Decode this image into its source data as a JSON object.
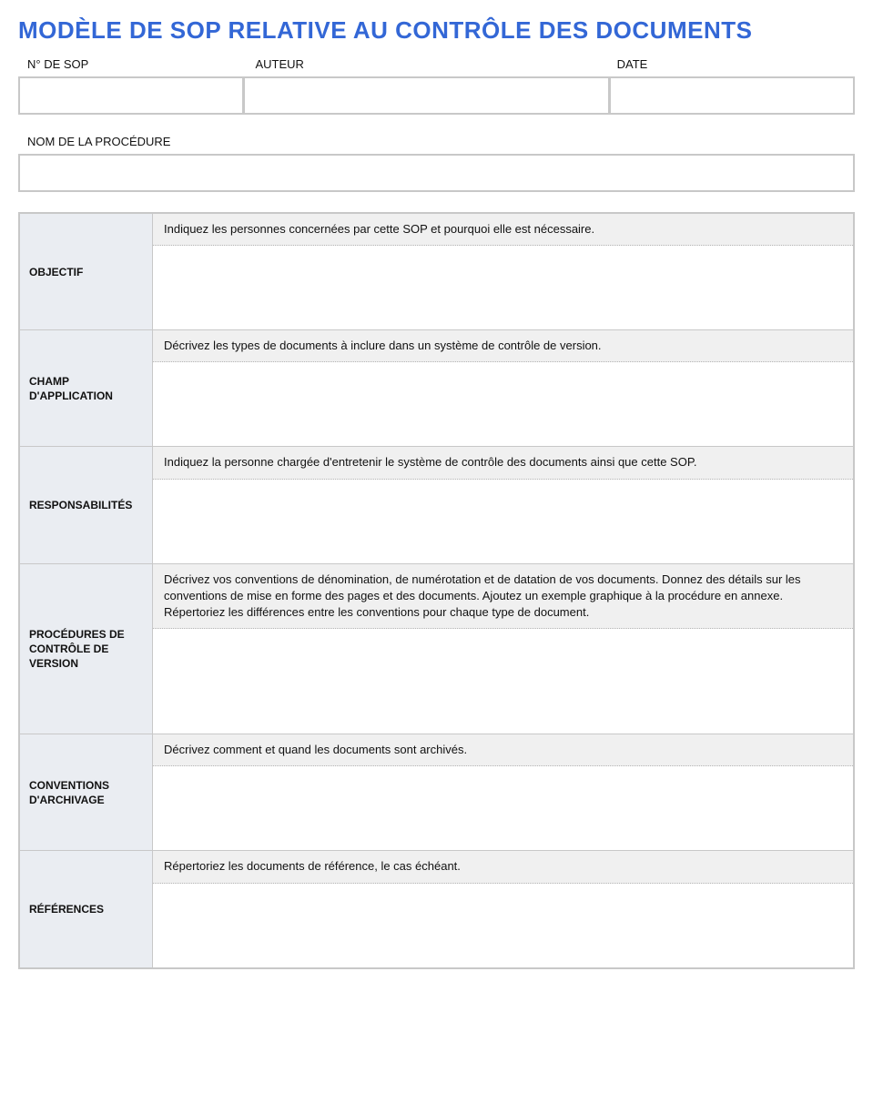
{
  "title": "MODÈLE DE SOP RELATIVE AU CONTRÔLE DES DOCUMENTS",
  "header": {
    "sop_no_label": "N° DE SOP",
    "auteur_label": "AUTEUR",
    "date_label": "DATE",
    "sop_no_value": "",
    "auteur_value": "",
    "date_value": ""
  },
  "procedure_name": {
    "label": "NOM DE LA PROCÉDURE",
    "value": ""
  },
  "sections": {
    "objectif": {
      "label": "OBJECTIF",
      "description": "Indiquez les personnes concernées par cette SOP et pourquoi elle est nécessaire."
    },
    "champ": {
      "label": "CHAMP D'APPLICATION",
      "description": "Décrivez les types de documents à inclure dans un système de contrôle de version."
    },
    "responsabilites": {
      "label": "RESPONSABILITÉS",
      "description": "Indiquez la personne chargée d'entretenir le système de contrôle des documents ainsi que cette SOP."
    },
    "procedures": {
      "label": "PROCÉDURES DE CONTRÔLE DE VERSION",
      "description": "Décrivez vos conventions de dénomination, de numérotation et de datation de vos documents. Donnez des détails sur les conventions de mise en forme des pages et des documents.  Ajoutez un exemple graphique à la procédure en annexe. Répertoriez les différences entre les conventions pour chaque type de document."
    },
    "archivage": {
      "label": "CONVENTIONS D'ARCHIVAGE",
      "description": "Décrivez comment et quand les documents sont archivés."
    },
    "references": {
      "label": "RÉFÉRENCES",
      "description": "Répertoriez les documents de référence, le cas échéant."
    }
  },
  "style": {
    "title_color": "#3367d6",
    "border_color": "#c8c8c8",
    "label_bg": "#eaedf2",
    "desc_bg": "#f0f0f0",
    "page_bg": "#ffffff"
  }
}
